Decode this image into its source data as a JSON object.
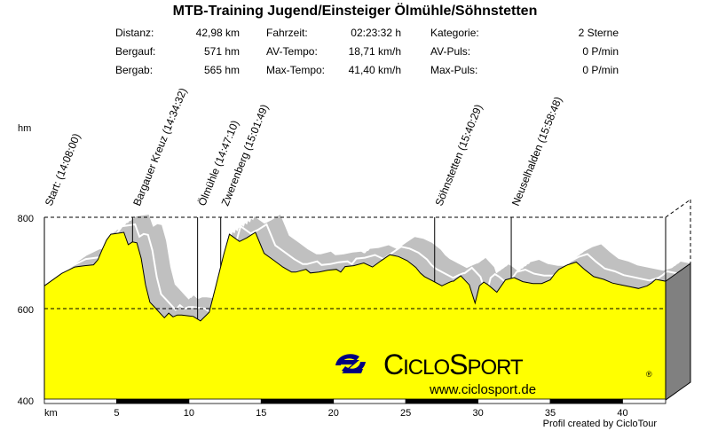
{
  "title": "MTB-Training Jugend/Einsteiger Ölmühle/Söhnstetten",
  "stats": [
    [
      {
        "label": "Distanz:",
        "value": "42,98 km"
      },
      {
        "label": "Bergauf:",
        "value": "571 hm"
      },
      {
        "label": "Bergab:",
        "value": "565 hm"
      }
    ],
    [
      {
        "label": "Fahrzeit:",
        "value": "02:23:32 h"
      },
      {
        "label": "AV-Tempo:",
        "value": "18,71 km/h"
      },
      {
        "label": "Max-Tempo:",
        "value": "41,40 km/h"
      }
    ],
    [
      {
        "label": "Kategorie:",
        "value": "2 Sterne"
      },
      {
        "label": "AV-Puls:",
        "value": "0 P/min"
      },
      {
        "label": "Max-Puls:",
        "value": "0 P/min"
      }
    ]
  ],
  "footer": "Profil created by CicloTour",
  "logo": {
    "brand": "CICLOSPORT",
    "brand_first": "C",
    "brand_rest1": "ICLO",
    "brand_second": "S",
    "brand_rest2": "PORT",
    "registered": "®",
    "url": "www.ciclosport.de",
    "color": "#000080"
  },
  "colors": {
    "fill": "#ffff00",
    "shadow": "#c0c0c0",
    "side": "#808080"
  },
  "chart_data": {
    "type": "area",
    "title": "MTB-Training Jugend/Einsteiger Ölmühle/Söhnstetten",
    "xlabel": "km",
    "ylabel": "hm",
    "xlim": [
      0,
      42.98
    ],
    "ylim": [
      400,
      800
    ],
    "xticks": [
      5,
      10,
      15,
      20,
      25,
      30,
      35,
      40
    ],
    "yticks": [
      400,
      600,
      800
    ],
    "grid": "dashed at 600 and 800",
    "x": [
      0,
      1.2,
      2.1,
      2.8,
      3.4,
      3.7,
      4.0,
      4.3,
      4.6,
      5.1,
      5.5,
      5.8,
      6.1,
      6.4,
      6.7,
      7.0,
      7.3,
      7.6,
      8.0,
      8.3,
      8.6,
      8.9,
      9.2,
      9.5,
      10.0,
      10.3,
      10.8,
      11.4,
      11.9,
      12.4,
      12.8,
      13.5,
      14.0,
      14.6,
      15.2,
      15.9,
      16.5,
      17.1,
      17.4,
      18.1,
      18.4,
      19.0,
      19.6,
      20.2,
      20.5,
      20.8,
      21.4,
      22.1,
      22.7,
      23.3,
      23.9,
      24.5,
      25.1,
      25.7,
      26.0,
      26.3,
      26.9,
      27.5,
      27.9,
      28.2,
      28.3,
      28.8,
      29.4,
      29.8,
      30.1,
      30.4,
      30.7,
      31.3,
      31.9,
      32.5,
      33.1,
      33.8,
      34.4,
      35.0,
      35.3,
      35.6,
      36.2,
      36.8,
      37.4,
      38.0,
      38.7,
      39.3,
      39.9,
      40.5,
      41.1,
      41.7,
      42.0,
      42.3,
      42.98
    ],
    "y": [
      650,
      677,
      691,
      694,
      696,
      707,
      729,
      750,
      763,
      765,
      767,
      740,
      746,
      744,
      710,
      652,
      614,
      604,
      590,
      580,
      590,
      582,
      586,
      586,
      584,
      583,
      573,
      592,
      654,
      718,
      763,
      747,
      755,
      767,
      721,
      705,
      691,
      680,
      680,
      686,
      678,
      680,
      684,
      686,
      680,
      692,
      694,
      700,
      691,
      705,
      718,
      714,
      705,
      690,
      678,
      670,
      660,
      650,
      656,
      660,
      660,
      672,
      652,
      612,
      650,
      658,
      652,
      636,
      663,
      668,
      659,
      655,
      655,
      663,
      676,
      686,
      696,
      702,
      685,
      670,
      664,
      656,
      652,
      648,
      644,
      650,
      656,
      664,
      660
    ],
    "waypoints": [
      {
        "km": 0,
        "label": "Start: (14:08:00)"
      },
      {
        "km": 6.1,
        "label": "Bargauer Kreuz (14:34:32)"
      },
      {
        "km": 10.6,
        "label": "Ölmühle (14:47:10)"
      },
      {
        "km": 12.2,
        "label": "Zwerenberg (15:01:49)"
      },
      {
        "km": 27.0,
        "label": "Söhnstetten (15:40:29)"
      },
      {
        "km": 32.3,
        "label": "Neuselhalden (15:58:48)"
      }
    ]
  }
}
